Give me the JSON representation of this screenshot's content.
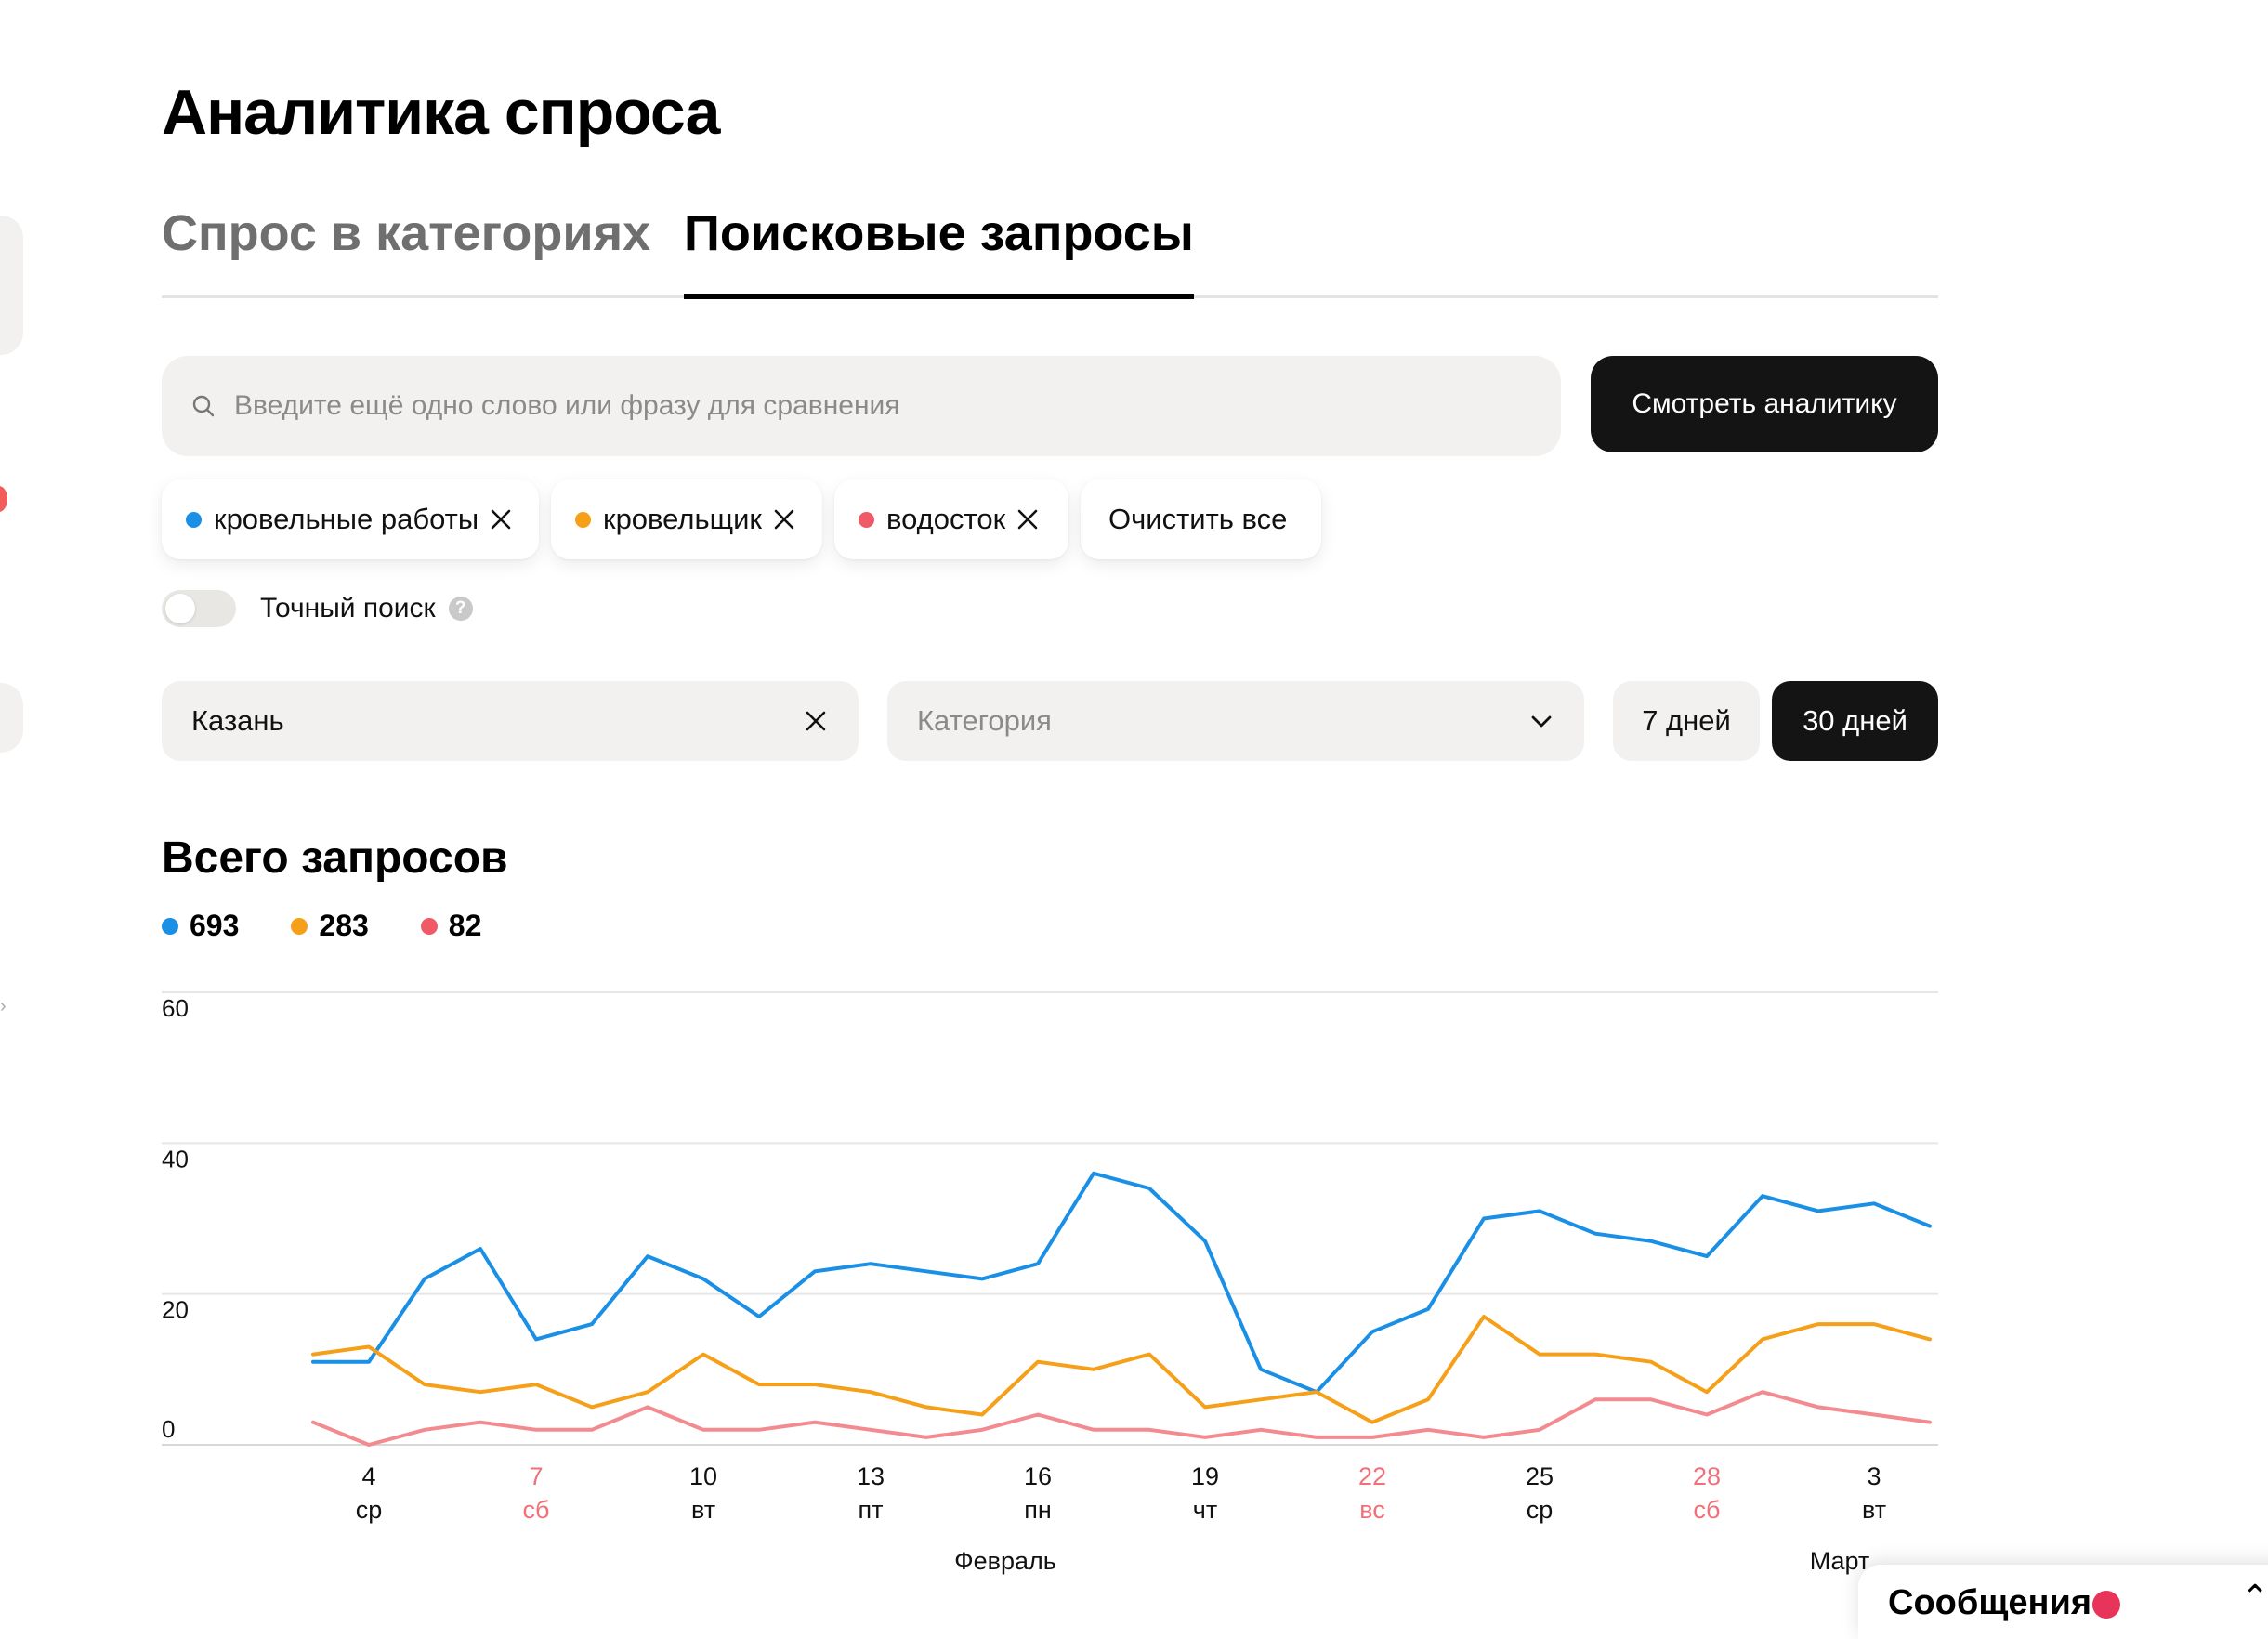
{
  "page": {
    "title": "Аналитика спроса",
    "tabs": [
      {
        "label": "Спрос в категориях",
        "active": false
      },
      {
        "label": "Поисковые запросы",
        "active": true
      }
    ]
  },
  "search": {
    "placeholder": "Введите ещё одно слово или фразу для сравнения",
    "value": "",
    "button_label": "Смотреть аналитику"
  },
  "chips": [
    {
      "label": "кровельные работы",
      "color": "#1a8fe6"
    },
    {
      "label": "кровельщик",
      "color": "#f5a018"
    },
    {
      "label": "водосток",
      "color": "#f05a66"
    }
  ],
  "clear_all_label": "Очистить все",
  "exact_search": {
    "label": "Точный поиск",
    "enabled": false,
    "help_icon": "?"
  },
  "filters": {
    "city": "Казань",
    "category_placeholder": "Категория",
    "periods": [
      {
        "label": "7 дней",
        "active": false
      },
      {
        "label": "30 дней",
        "active": true
      }
    ]
  },
  "summary": {
    "title": "Всего запросов",
    "totals": [
      {
        "value": "693",
        "color": "#1a8fe6"
      },
      {
        "value": "283",
        "color": "#f5a018"
      },
      {
        "value": "82",
        "color": "#f05a66"
      }
    ]
  },
  "chart_data": {
    "type": "line",
    "ylim": [
      0,
      60
    ],
    "yticks": [
      "60",
      "40",
      "20",
      "0"
    ],
    "x": [
      3,
      4,
      5,
      6,
      7,
      8,
      9,
      10,
      11,
      12,
      13,
      14,
      15,
      16,
      17,
      18,
      19,
      20,
      21,
      22,
      23,
      24,
      25,
      26,
      27,
      28,
      1,
      2,
      3,
      4
    ],
    "xtick_labels": [
      {
        "day": "4",
        "weekday": "ср",
        "weekend": false
      },
      {
        "day": "7",
        "weekday": "сб",
        "weekend": true
      },
      {
        "day": "10",
        "weekday": "вт",
        "weekend": false
      },
      {
        "day": "13",
        "weekday": "пт",
        "weekend": false
      },
      {
        "day": "16",
        "weekday": "пн",
        "weekend": false
      },
      {
        "day": "19",
        "weekday": "чт",
        "weekend": false
      },
      {
        "day": "22",
        "weekday": "вс",
        "weekend": true
      },
      {
        "day": "25",
        "weekday": "ср",
        "weekend": false
      },
      {
        "day": "28",
        "weekday": "сб",
        "weekend": true
      },
      {
        "day": "3",
        "weekday": "вт",
        "weekend": false
      }
    ],
    "months": [
      "Февраль",
      "Март"
    ],
    "weekend_color": "#f0707a",
    "series": [
      {
        "color": "#1a8fe6",
        "values": [
          11,
          11,
          22,
          26,
          14,
          16,
          25,
          22,
          17,
          23,
          24,
          23,
          22,
          24,
          36,
          34,
          27,
          10,
          7,
          15,
          18,
          30,
          31,
          28,
          27,
          25,
          33,
          31,
          32,
          29
        ]
      },
      {
        "color": "#f5a018",
        "values": [
          12,
          13,
          8,
          7,
          8,
          5,
          7,
          12,
          8,
          8,
          7,
          5,
          4,
          11,
          10,
          12,
          5,
          6,
          7,
          3,
          6,
          17,
          12,
          12,
          11,
          7,
          14,
          16,
          16,
          14
        ]
      },
      {
        "color": "#f38a90",
        "values": [
          3,
          0,
          2,
          3,
          2,
          2,
          5,
          2,
          2,
          3,
          2,
          1,
          2,
          4,
          2,
          2,
          1,
          2,
          1,
          1,
          2,
          1,
          2,
          6,
          6,
          4,
          7,
          5,
          4,
          3
        ]
      }
    ]
  },
  "messages": {
    "label": "Сообщения"
  }
}
